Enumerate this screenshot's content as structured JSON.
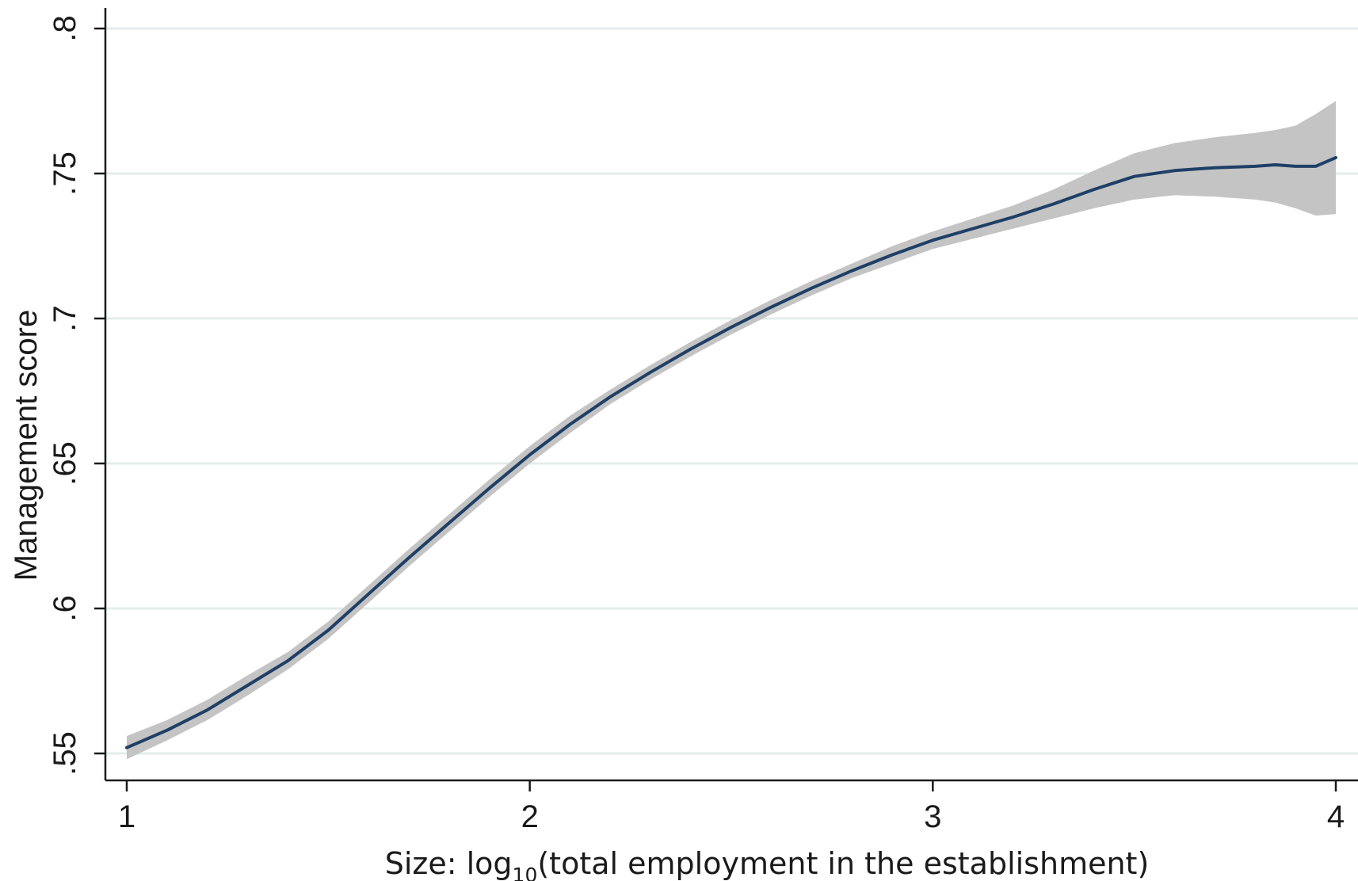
{
  "chart_data": {
    "type": "line",
    "xlabel_prefix": "Size: log",
    "xlabel_subscript": "10",
    "xlabel_suffix": "(total employment in the establishment)",
    "ylabel": "Management score",
    "xlim": [
      1,
      4
    ],
    "ylim": [
      0.55,
      0.8
    ],
    "xticks": [
      {
        "value": 1,
        "label": "1"
      },
      {
        "value": 2,
        "label": "2"
      },
      {
        "value": 3,
        "label": "3"
      },
      {
        "value": 4,
        "label": "4"
      }
    ],
    "yticks": [
      {
        "value": 0.55,
        "label": ".55"
      },
      {
        "value": 0.6,
        "label": ".6"
      },
      {
        "value": 0.65,
        "label": ".65"
      },
      {
        "value": 0.7,
        "label": ".7"
      },
      {
        "value": 0.75,
        "label": ".75"
      },
      {
        "value": 0.8,
        "label": ".8"
      }
    ],
    "grid": "horizontal",
    "colors": {
      "line": "#1f3f66",
      "band": "#c4c4c4",
      "grid": "#e4ecec",
      "axis": "#1a1a1a"
    },
    "series": [
      {
        "x": [
          1.0,
          1.1,
          1.2,
          1.3,
          1.4,
          1.5,
          1.6,
          1.7,
          1.8,
          1.9,
          2.0,
          2.1,
          2.2,
          2.3,
          2.4,
          2.5,
          2.6,
          2.7,
          2.8,
          2.9,
          3.0,
          3.1,
          3.2,
          3.3,
          3.4,
          3.5,
          3.6,
          3.7,
          3.8,
          3.85,
          3.9,
          3.95,
          4.0
        ],
        "y": [
          0.552,
          0.558,
          0.565,
          0.5735,
          0.582,
          0.5925,
          0.605,
          0.6175,
          0.6295,
          0.6415,
          0.653,
          0.6635,
          0.673,
          0.6815,
          0.6895,
          0.697,
          0.704,
          0.7105,
          0.7165,
          0.722,
          0.727,
          0.731,
          0.735,
          0.7395,
          0.7445,
          0.749,
          0.751,
          0.752,
          0.7525,
          0.753,
          0.7525,
          0.7525,
          0.7555
        ],
        "lower": [
          0.548,
          0.5545,
          0.5615,
          0.57,
          0.579,
          0.5895,
          0.602,
          0.6145,
          0.6265,
          0.6385,
          0.65,
          0.6605,
          0.6705,
          0.679,
          0.687,
          0.6945,
          0.7015,
          0.708,
          0.714,
          0.719,
          0.724,
          0.7275,
          0.731,
          0.7345,
          0.738,
          0.741,
          0.7425,
          0.742,
          0.741,
          0.74,
          0.738,
          0.7355,
          0.736
        ],
        "upper": [
          0.556,
          0.5615,
          0.5685,
          0.577,
          0.585,
          0.5955,
          0.608,
          0.6205,
          0.6325,
          0.6445,
          0.656,
          0.6665,
          0.6755,
          0.684,
          0.692,
          0.6995,
          0.7065,
          0.713,
          0.719,
          0.725,
          0.73,
          0.7345,
          0.739,
          0.7445,
          0.751,
          0.757,
          0.7605,
          0.7625,
          0.764,
          0.765,
          0.7665,
          0.7705,
          0.775
        ]
      }
    ]
  }
}
